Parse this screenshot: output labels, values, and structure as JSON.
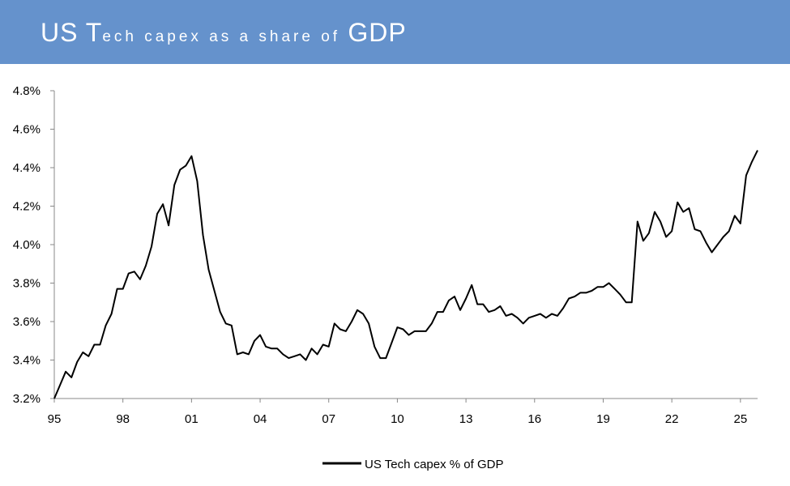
{
  "header": {
    "title_big_1": "US T",
    "title_small_1": "ech capex as a share of ",
    "title_big_2": "GDP",
    "background_color": "#6592cc"
  },
  "chart_data": {
    "type": "line",
    "title": "US Tech capex as a share of GDP",
    "xlabel": "",
    "ylabel": "",
    "x_range": [
      1995.0,
      2025.75
    ],
    "ylim": [
      3.2,
      4.8
    ],
    "y_ticks": [
      "3.2%",
      "3.4%",
      "3.6%",
      "3.8%",
      "4.0%",
      "4.2%",
      "4.4%",
      "4.6%",
      "4.8%"
    ],
    "x_ticks": [
      "95",
      "98",
      "01",
      "04",
      "07",
      "10",
      "13",
      "16",
      "19",
      "22",
      "25"
    ],
    "grid": false,
    "legend_position": "bottom-center",
    "series": [
      {
        "name": "US Tech capex % of GDP",
        "color": "#000000",
        "x": [
          1995.0,
          1995.25,
          1995.5,
          1995.75,
          1996.0,
          1996.25,
          1996.5,
          1996.75,
          1997.0,
          1997.25,
          1997.5,
          1997.75,
          1998.0,
          1998.25,
          1998.5,
          1998.75,
          1999.0,
          1999.25,
          1999.5,
          1999.75,
          2000.0,
          2000.25,
          2000.5,
          2000.75,
          2001.0,
          2001.25,
          2001.5,
          2001.75,
          2002.0,
          2002.25,
          2002.5,
          2002.75,
          2003.0,
          2003.25,
          2003.5,
          2003.75,
          2004.0,
          2004.25,
          2004.5,
          2004.75,
          2005.0,
          2005.25,
          2005.5,
          2005.75,
          2006.0,
          2006.25,
          2006.5,
          2006.75,
          2007.0,
          2007.25,
          2007.5,
          2007.75,
          2008.0,
          2008.25,
          2008.5,
          2008.75,
          2009.0,
          2009.25,
          2009.5,
          2009.75,
          2010.0,
          2010.25,
          2010.5,
          2010.75,
          2011.0,
          2011.25,
          2011.5,
          2011.75,
          2012.0,
          2012.25,
          2012.5,
          2012.75,
          2013.0,
          2013.25,
          2013.5,
          2013.75,
          2014.0,
          2014.25,
          2014.5,
          2014.75,
          2015.0,
          2015.25,
          2015.5,
          2015.75,
          2016.0,
          2016.25,
          2016.5,
          2016.75,
          2017.0,
          2017.25,
          2017.5,
          2017.75,
          2018.0,
          2018.25,
          2018.5,
          2018.75,
          2019.0,
          2019.25,
          2019.5,
          2019.75,
          2020.0,
          2020.25,
          2020.5,
          2020.75,
          2021.0,
          2021.25,
          2021.5,
          2021.75,
          2022.0,
          2022.25,
          2022.5,
          2022.75,
          2023.0,
          2023.25,
          2023.5,
          2023.75,
          2024.0,
          2024.25,
          2024.5,
          2024.75,
          2025.0,
          2025.25,
          2025.5,
          2025.75
        ],
        "values": [
          3.2,
          3.27,
          3.34,
          3.31,
          3.39,
          3.44,
          3.42,
          3.48,
          3.48,
          3.58,
          3.64,
          3.77,
          3.77,
          3.85,
          3.86,
          3.82,
          3.89,
          3.99,
          4.16,
          4.21,
          4.1,
          4.31,
          4.39,
          4.41,
          4.46,
          4.33,
          4.05,
          3.87,
          3.76,
          3.65,
          3.59,
          3.58,
          3.43,
          3.44,
          3.43,
          3.5,
          3.53,
          3.47,
          3.46,
          3.46,
          3.43,
          3.41,
          3.42,
          3.43,
          3.4,
          3.46,
          3.43,
          3.48,
          3.47,
          3.59,
          3.56,
          3.55,
          3.6,
          3.66,
          3.64,
          3.59,
          3.47,
          3.41,
          3.41,
          3.49,
          3.57,
          3.56,
          3.53,
          3.55,
          3.55,
          3.55,
          3.59,
          3.65,
          3.65,
          3.71,
          3.73,
          3.66,
          3.72,
          3.79,
          3.69,
          3.69,
          3.65,
          3.66,
          3.68,
          3.63,
          3.64,
          3.62,
          3.59,
          3.62,
          3.63,
          3.64,
          3.62,
          3.64,
          3.63,
          3.67,
          3.72,
          3.73,
          3.75,
          3.75,
          3.76,
          3.78,
          3.78,
          3.8,
          3.77,
          3.74,
          3.7,
          3.7,
          4.12,
          4.02,
          4.06,
          4.17,
          4.12,
          4.04,
          4.07,
          4.22,
          4.17,
          4.19,
          4.08,
          4.07,
          4.01,
          3.96,
          4.0,
          4.04,
          4.07,
          4.15,
          4.11,
          4.36,
          4.43,
          4.49
        ]
      }
    ]
  }
}
